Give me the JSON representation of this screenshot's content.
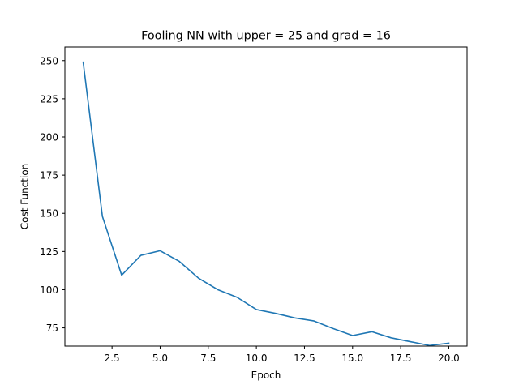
{
  "chart_data": {
    "type": "line",
    "title": "Fooling NN with upper = 25 and grad = 16",
    "xlabel": "Epoch",
    "ylabel": "Cost Function",
    "xlim": [
      0.05,
      20.95
    ],
    "ylim": [
      63.1,
      258.9
    ],
    "xticks": [
      2.5,
      5.0,
      7.5,
      10.0,
      12.5,
      15.0,
      17.5,
      20.0
    ],
    "xtick_labels": [
      "2.5",
      "5.0",
      "7.5",
      "10.0",
      "12.5",
      "15.0",
      "17.5",
      "20.0"
    ],
    "yticks": [
      75,
      100,
      125,
      150,
      175,
      200,
      225,
      250
    ],
    "ytick_labels": [
      "75",
      "100",
      "125",
      "150",
      "175",
      "200",
      "225",
      "250"
    ],
    "grid": false,
    "series": [
      {
        "color": "#1f77b4",
        "x": [
          1,
          2,
          3,
          4,
          5,
          6,
          7,
          8,
          9,
          10,
          11,
          12,
          13,
          14,
          15,
          16,
          17,
          18,
          19,
          20
        ],
        "y": [
          249,
          148,
          109.5,
          122.5,
          125.5,
          118.5,
          107.5,
          100,
          95,
          87,
          84.5,
          81.5,
          79.5,
          74.5,
          70,
          72.5,
          68.5,
          66,
          63.5,
          65
        ]
      }
    ]
  }
}
